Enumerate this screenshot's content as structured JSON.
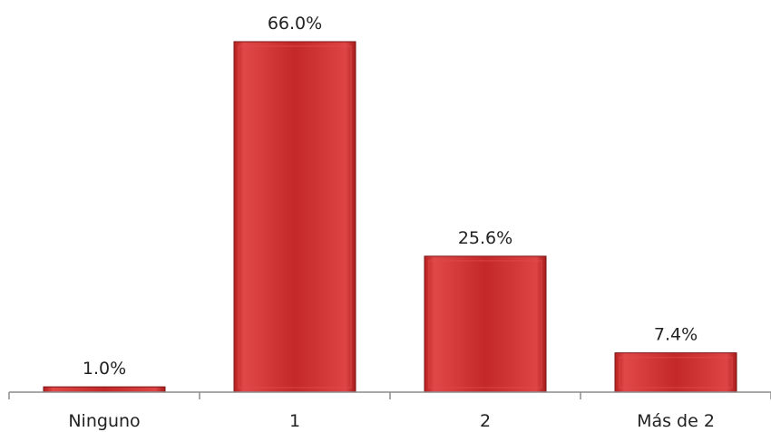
{
  "colors": {
    "bar_fill": "#c62a2a",
    "bar_edge": "#e04a4a",
    "bar_stroke": "#7a1414",
    "axis": "#8c8c8c",
    "text": "#222222"
  },
  "chart_data": {
    "type": "bar",
    "categories": [
      "Ninguno",
      "1",
      "2",
      "Más de 2"
    ],
    "values": [
      1.0,
      66.0,
      25.6,
      7.4
    ],
    "value_labels": [
      "1.0%",
      "66.0%",
      "25.6%",
      "7.4%"
    ],
    "title": "",
    "xlabel": "",
    "ylabel": "",
    "ylim": [
      0,
      66.0
    ],
    "grid": false,
    "legend": "none"
  }
}
